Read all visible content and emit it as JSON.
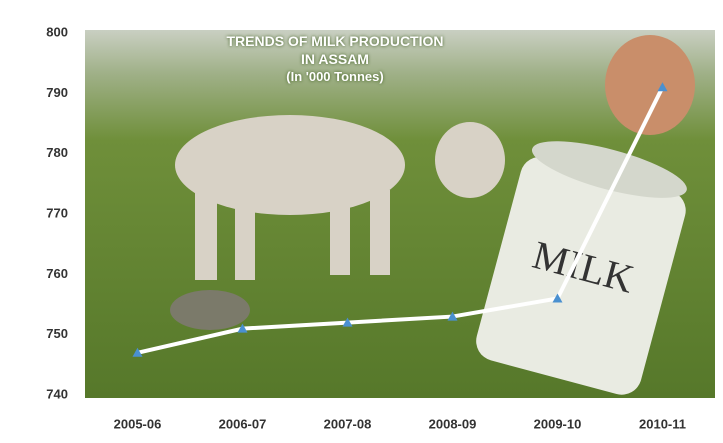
{
  "chart_data": {
    "type": "line",
    "title": "TRENDS OF MILK PRODUCTION IN ASSAM",
    "subtitle": "(In '000 Tonnes)",
    "annotation": "MILK",
    "categories": [
      "2005-06",
      "2006-07",
      "2007-08",
      "2008-09",
      "2009-10",
      "2010-11"
    ],
    "values": [
      747,
      751,
      752,
      753,
      756,
      791
    ],
    "color": "#ffffff",
    "marker_color": "#4a90d0",
    "ylim": [
      740,
      800
    ],
    "yticks": [
      740,
      750,
      760,
      770,
      780,
      790,
      800
    ],
    "grid": false
  }
}
